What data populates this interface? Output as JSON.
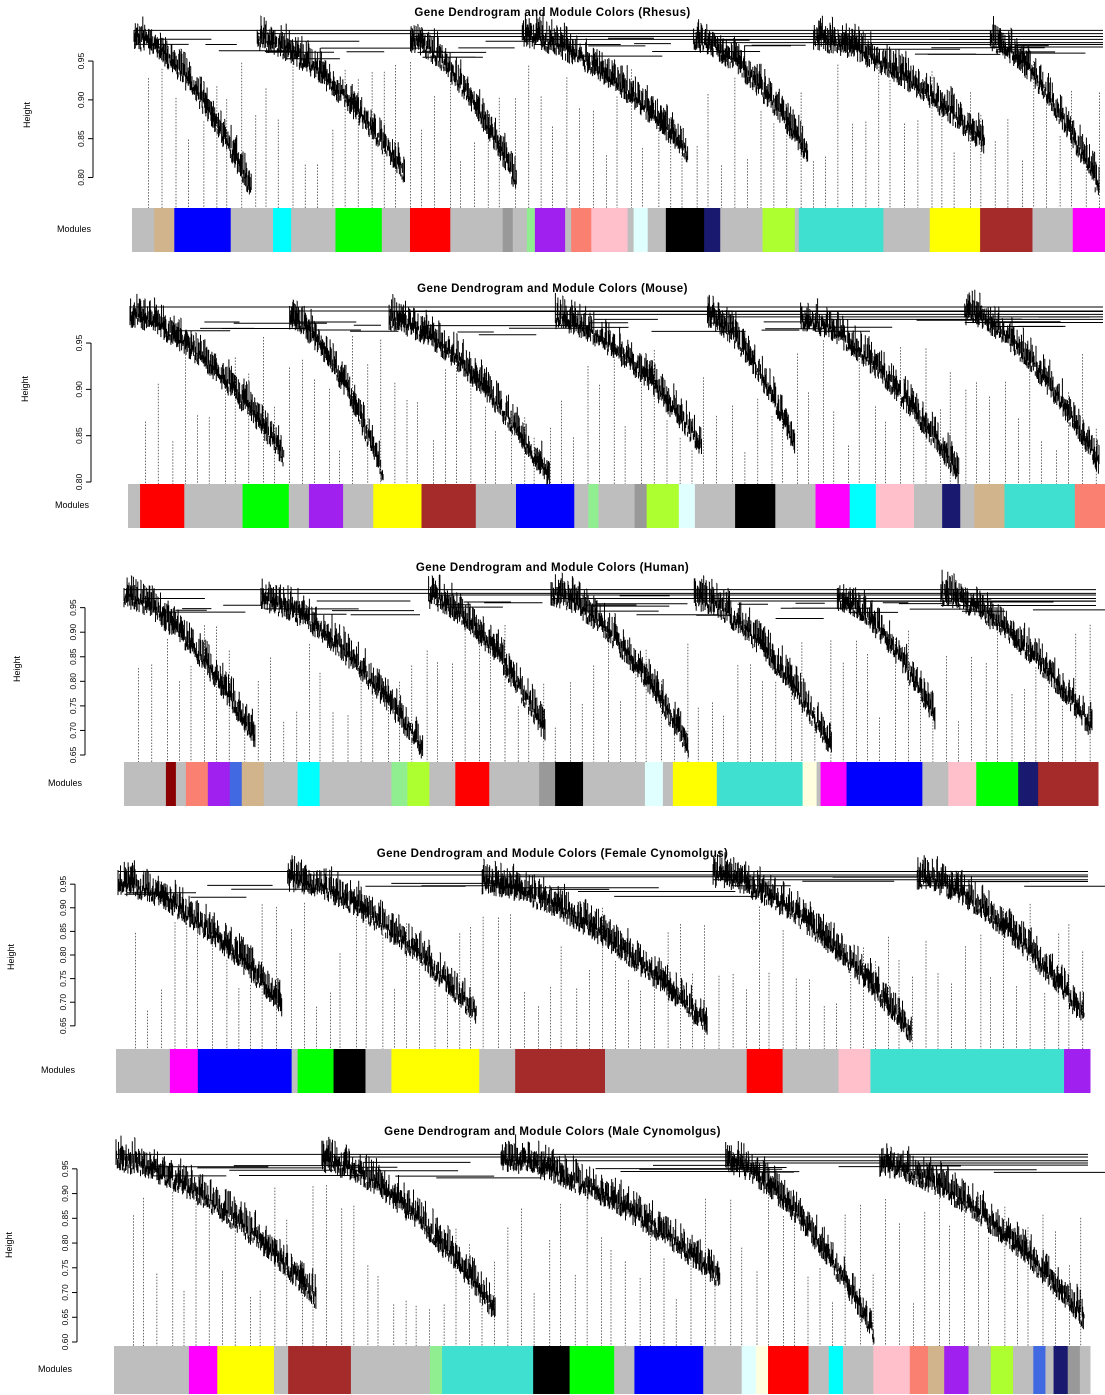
{
  "ylabel": "Height",
  "modules_label": "Modules",
  "chart_data": [
    {
      "type": "dendrogram",
      "title": "Gene Dendrogram and Module Colors (Rhesus)",
      "ylabel": "Height",
      "yticks": [
        0.8,
        0.85,
        0.9,
        0.95
      ],
      "ylim": [
        0.78,
        0.99
      ],
      "modules": [
        {
          "color": "#bebebe",
          "w": 22
        },
        {
          "color": "#d2b48c",
          "w": 20
        },
        {
          "color": "#0000ff",
          "w": 56
        },
        {
          "color": "#bebebe",
          "w": 42
        },
        {
          "color": "#00ffff",
          "w": 18
        },
        {
          "color": "#bebebe",
          "w": 44
        },
        {
          "color": "#00ff00",
          "w": 46
        },
        {
          "color": "#bebebe",
          "w": 28
        },
        {
          "color": "#ff0000",
          "w": 40
        },
        {
          "color": "#bebebe",
          "w": 52
        },
        {
          "color": "#999999",
          "w": 10
        },
        {
          "color": "#bebebe",
          "w": 14
        },
        {
          "color": "#90ee90",
          "w": 8
        },
        {
          "color": "#a020f0",
          "w": 30
        },
        {
          "color": "#bebebe",
          "w": 6
        },
        {
          "color": "#fa8072",
          "w": 20
        },
        {
          "color": "#ffc0cb",
          "w": 36
        },
        {
          "color": "#bebebe",
          "w": 6
        },
        {
          "color": "#e0ffff",
          "w": 14
        },
        {
          "color": "#bebebe",
          "w": 18
        },
        {
          "color": "#000000",
          "w": 38
        },
        {
          "color": "#191970",
          "w": 16
        },
        {
          "color": "#bebebe",
          "w": 42
        },
        {
          "color": "#adff2f",
          "w": 32
        },
        {
          "color": "#bebebe",
          "w": 4
        },
        {
          "color": "#40e0d0",
          "w": 84
        },
        {
          "color": "#bebebe",
          "w": 46
        },
        {
          "color": "#ffff00",
          "w": 50
        },
        {
          "color": "#a52a2a",
          "w": 52
        },
        {
          "color": "#bebebe",
          "w": 40
        },
        {
          "color": "#ff00ff",
          "w": 32
        }
      ]
    },
    {
      "type": "dendrogram",
      "title": "Gene Dendrogram and Module Colors (Mouse)",
      "ylabel": "Height",
      "yticks": [
        0.8,
        0.85,
        0.9,
        0.95
      ],
      "ylim": [
        0.8,
        0.99
      ],
      "modules": [
        {
          "color": "#bebebe",
          "w": 12
        },
        {
          "color": "#ff0000",
          "w": 44
        },
        {
          "color": "#bebebe",
          "w": 58
        },
        {
          "color": "#00ff00",
          "w": 46
        },
        {
          "color": "#bebebe",
          "w": 20
        },
        {
          "color": "#a020f0",
          "w": 34
        },
        {
          "color": "#bebebe",
          "w": 30
        },
        {
          "color": "#ffff00",
          "w": 48
        },
        {
          "color": "#a52a2a",
          "w": 54
        },
        {
          "color": "#bebebe",
          "w": 40
        },
        {
          "color": "#0000ff",
          "w": 58
        },
        {
          "color": "#bebebe",
          "w": 14
        },
        {
          "color": "#90ee90",
          "w": 10
        },
        {
          "color": "#bebebe",
          "w": 36
        },
        {
          "color": "#999999",
          "w": 12
        },
        {
          "color": "#adff2f",
          "w": 32
        },
        {
          "color": "#e0ffff",
          "w": 16
        },
        {
          "color": "#bebebe",
          "w": 40
        },
        {
          "color": "#000000",
          "w": 40
        },
        {
          "color": "#bebebe",
          "w": 40
        },
        {
          "color": "#ff00ff",
          "w": 34
        },
        {
          "color": "#00ffff",
          "w": 26
        },
        {
          "color": "#ffc0cb",
          "w": 38
        },
        {
          "color": "#bebebe",
          "w": 28
        },
        {
          "color": "#191970",
          "w": 18
        },
        {
          "color": "#bebebe",
          "w": 14
        },
        {
          "color": "#d2b48c",
          "w": 30
        },
        {
          "color": "#40e0d0",
          "w": 70
        },
        {
          "color": "#fa8072",
          "w": 30
        }
      ]
    },
    {
      "type": "dendrogram",
      "title": "Gene Dendrogram and Module Colors (Human)",
      "ylabel": "Height",
      "yticks": [
        0.65,
        0.7,
        0.75,
        0.8,
        0.85,
        0.9,
        0.95
      ],
      "ylim": [
        0.65,
        0.99
      ],
      "modules": [
        {
          "color": "#bebebe",
          "w": 42
        },
        {
          "color": "#8b0000",
          "w": 10
        },
        {
          "color": "#bebebe",
          "w": 10
        },
        {
          "color": "#fa8072",
          "w": 22
        },
        {
          "color": "#a020f0",
          "w": 22
        },
        {
          "color": "#4169e1",
          "w": 12
        },
        {
          "color": "#d2b48c",
          "w": 22
        },
        {
          "color": "#bebebe",
          "w": 34
        },
        {
          "color": "#00ffff",
          "w": 22
        },
        {
          "color": "#bebebe",
          "w": 72
        },
        {
          "color": "#90ee90",
          "w": 16
        },
        {
          "color": "#adff2f",
          "w": 22
        },
        {
          "color": "#bebebe",
          "w": 26
        },
        {
          "color": "#ff0000",
          "w": 34
        },
        {
          "color": "#bebebe",
          "w": 50
        },
        {
          "color": "#999999",
          "w": 16
        },
        {
          "color": "#000000",
          "w": 28
        },
        {
          "color": "#bebebe",
          "w": 62
        },
        {
          "color": "#e0ffff",
          "w": 18
        },
        {
          "color": "#bebebe",
          "w": 10
        },
        {
          "color": "#ffff00",
          "w": 44
        },
        {
          "color": "#40e0d0",
          "w": 86
        },
        {
          "color": "#ffffe0",
          "w": 14
        },
        {
          "color": "#bebebe",
          "w": 4
        },
        {
          "color": "#ff00ff",
          "w": 26
        },
        {
          "color": "#0000ff",
          "w": 76
        },
        {
          "color": "#bebebe",
          "w": 26
        },
        {
          "color": "#ffc0cb",
          "w": 28
        },
        {
          "color": "#00ff00",
          "w": 42
        },
        {
          "color": "#191970",
          "w": 20
        },
        {
          "color": "#a52a2a",
          "w": 60
        }
      ]
    },
    {
      "type": "dendrogram",
      "title": "Gene Dendrogram and Module Colors (Female Cynomolgus)",
      "ylabel": "Height",
      "yticks": [
        0.65,
        0.7,
        0.75,
        0.8,
        0.85,
        0.9,
        0.95
      ],
      "ylim": [
        0.62,
        0.98
      ],
      "modules": [
        {
          "color": "#bebebe",
          "w": 54
        },
        {
          "color": "#ff00ff",
          "w": 28
        },
        {
          "color": "#0000ff",
          "w": 94
        },
        {
          "color": "#bebebe",
          "w": 6
        },
        {
          "color": "#00ff00",
          "w": 36
        },
        {
          "color": "#000000",
          "w": 32
        },
        {
          "color": "#bebebe",
          "w": 26
        },
        {
          "color": "#ffff00",
          "w": 88
        },
        {
          "color": "#bebebe",
          "w": 36
        },
        {
          "color": "#a52a2a",
          "w": 90
        },
        {
          "color": "#bebebe",
          "w": 142
        },
        {
          "color": "#ff0000",
          "w": 36
        },
        {
          "color": "#bebebe",
          "w": 56
        },
        {
          "color": "#ffc0cb",
          "w": 32
        },
        {
          "color": "#40e0d0",
          "w": 194
        },
        {
          "color": "#a020f0",
          "w": 26
        }
      ]
    },
    {
      "type": "dendrogram",
      "title": "Gene Dendrogram and Module Colors (Male Cynomolgus)",
      "ylabel": "Height",
      "yticks": [
        0.6,
        0.65,
        0.7,
        0.75,
        0.8,
        0.85,
        0.9,
        0.95
      ],
      "ylim": [
        0.6,
        0.98
      ],
      "modules": [
        {
          "color": "#bebebe",
          "w": 74
        },
        {
          "color": "#ff00ff",
          "w": 28
        },
        {
          "color": "#ffff00",
          "w": 56
        },
        {
          "color": "#bebebe",
          "w": 14
        },
        {
          "color": "#a52a2a",
          "w": 62
        },
        {
          "color": "#bebebe",
          "w": 78
        },
        {
          "color": "#90ee90",
          "w": 12
        },
        {
          "color": "#40e0d0",
          "w": 90
        },
        {
          "color": "#000000",
          "w": 36
        },
        {
          "color": "#00ff00",
          "w": 44
        },
        {
          "color": "#bebebe",
          "w": 20
        },
        {
          "color": "#0000ff",
          "w": 68
        },
        {
          "color": "#bebebe",
          "w": 38
        },
        {
          "color": "#e0ffff",
          "w": 14
        },
        {
          "color": "#ffffe0",
          "w": 12
        },
        {
          "color": "#ff0000",
          "w": 40
        },
        {
          "color": "#bebebe",
          "w": 20
        },
        {
          "color": "#00ffff",
          "w": 14
        },
        {
          "color": "#bebebe",
          "w": 30
        },
        {
          "color": "#ffc0cb",
          "w": 36
        },
        {
          "color": "#fa8072",
          "w": 18
        },
        {
          "color": "#d2b48c",
          "w": 16
        },
        {
          "color": "#a020f0",
          "w": 24
        },
        {
          "color": "#bebebe",
          "w": 22
        },
        {
          "color": "#adff2f",
          "w": 22
        },
        {
          "color": "#bebebe",
          "w": 20
        },
        {
          "color": "#4169e1",
          "w": 12
        },
        {
          "color": "#bebebe",
          "w": 8
        },
        {
          "color": "#191970",
          "w": 14
        },
        {
          "color": "#999999",
          "w": 12
        },
        {
          "color": "#bebebe",
          "w": 10
        }
      ]
    }
  ]
}
